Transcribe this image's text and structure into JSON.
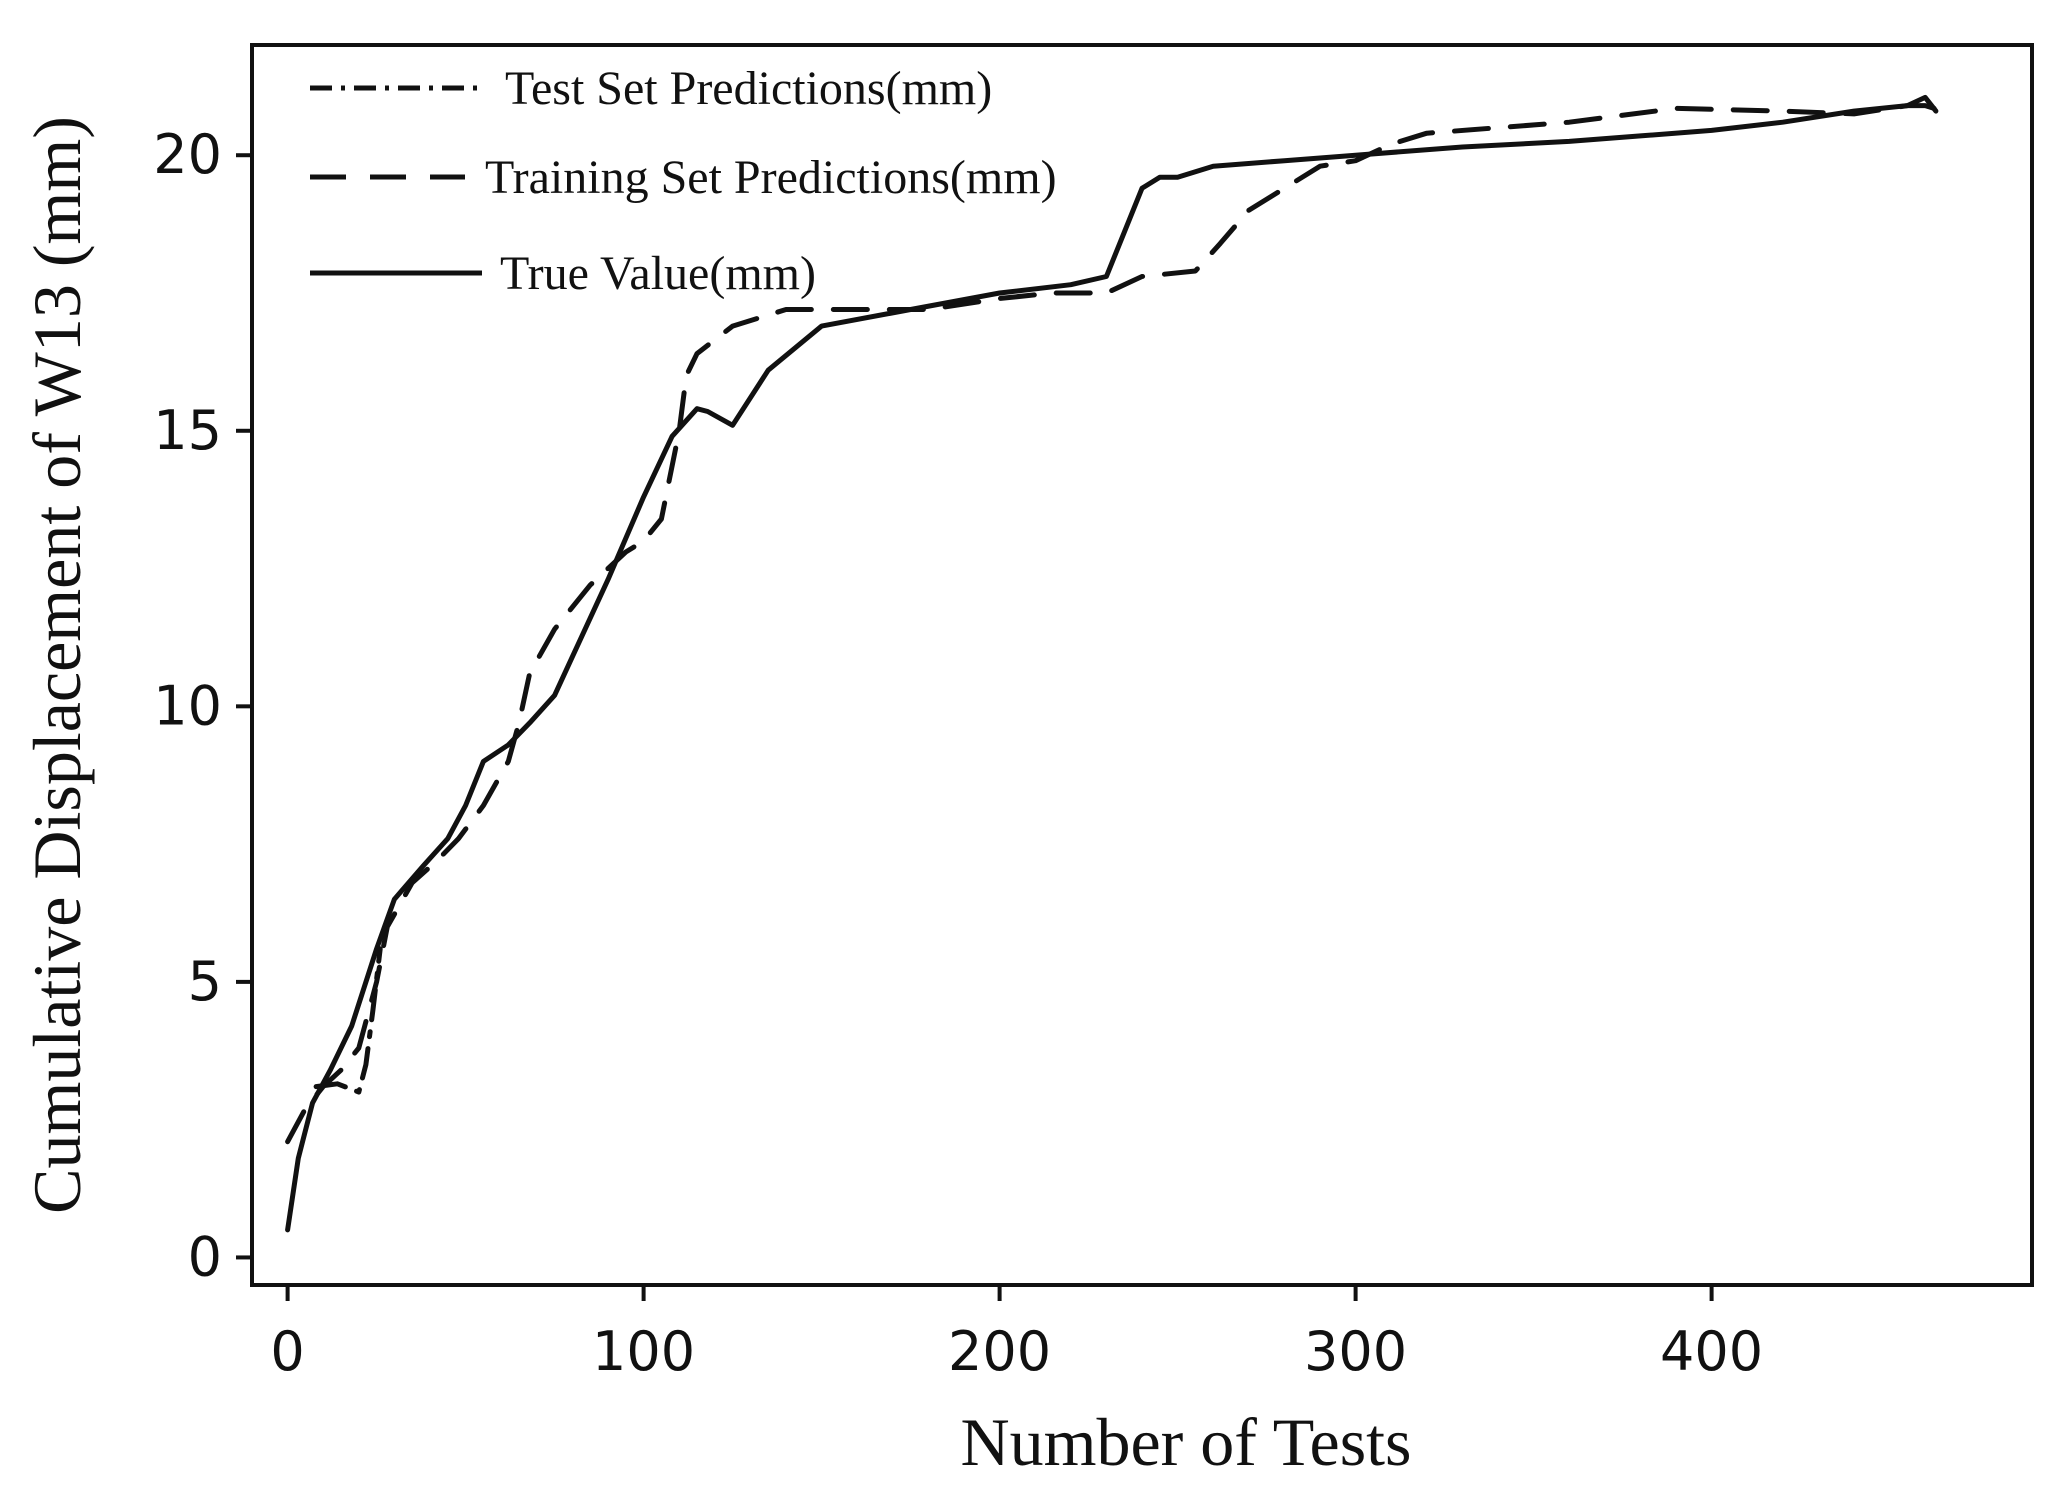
{
  "chart_data": {
    "type": "line",
    "title": "",
    "xlabel": "Number of Tests",
    "ylabel": "Cumulative Displacement of W13 (mm)",
    "xlim": [
      -10,
      490
    ],
    "ylim": [
      -0.5,
      22
    ],
    "xticks": [
      0,
      100,
      200,
      300,
      400
    ],
    "yticks": [
      0,
      5,
      10,
      15,
      20
    ],
    "grid": false,
    "legend_position": "top-left",
    "series": [
      {
        "name": "Test Set Predictions(mm)",
        "style": "dashdot",
        "x": [
          8,
          14,
          20,
          22,
          24,
          26
        ],
        "y": [
          3.1,
          3.15,
          3.0,
          3.5,
          4.5,
          5.6
        ]
      },
      {
        "name": "Training Set Predictions(mm)",
        "style": "dashed",
        "x": [
          0,
          5,
          10,
          15,
          20,
          25,
          28,
          35,
          42,
          48,
          55,
          62,
          65,
          68,
          75,
          85,
          95,
          100,
          105,
          110,
          112,
          115,
          125,
          140,
          160,
          180,
          200,
          215,
          230,
          240,
          255,
          262,
          270,
          280,
          290,
          300,
          310,
          320,
          340,
          360,
          390,
          420,
          440,
          455,
          460,
          465
        ],
        "y": [
          2.1,
          2.7,
          3.1,
          3.4,
          3.8,
          5.0,
          6.0,
          6.8,
          7.2,
          7.6,
          8.2,
          9.0,
          9.7,
          10.6,
          11.4,
          12.2,
          12.8,
          13.0,
          13.4,
          15.0,
          16.0,
          16.4,
          16.9,
          17.2,
          17.2,
          17.2,
          17.4,
          17.5,
          17.5,
          17.8,
          17.9,
          18.4,
          19.0,
          19.4,
          19.8,
          19.9,
          20.2,
          20.4,
          20.5,
          20.6,
          20.85,
          20.8,
          20.75,
          20.9,
          20.9,
          20.8
        ]
      },
      {
        "name": "True Value(mm)",
        "style": "solid",
        "x": [
          0,
          3,
          7,
          12,
          18,
          25,
          30,
          38,
          45,
          50,
          55,
          62,
          68,
          75,
          80,
          90,
          100,
          108,
          115,
          118,
          125,
          135,
          150,
          175,
          200,
          220,
          230,
          235,
          240,
          245,
          250,
          260,
          280,
          300,
          330,
          360,
          380,
          400,
          420,
          440,
          455,
          460,
          463
        ],
        "y": [
          0.5,
          1.8,
          2.8,
          3.4,
          4.2,
          5.6,
          6.5,
          7.1,
          7.6,
          8.2,
          9.0,
          9.3,
          9.7,
          10.2,
          10.9,
          12.3,
          13.8,
          14.9,
          15.4,
          15.35,
          15.1,
          16.1,
          16.9,
          17.2,
          17.5,
          17.65,
          17.8,
          18.6,
          19.4,
          19.6,
          19.6,
          19.8,
          19.9,
          20.0,
          20.15,
          20.25,
          20.35,
          20.45,
          20.6,
          20.8,
          20.9,
          21.05,
          20.8
        ]
      }
    ]
  }
}
